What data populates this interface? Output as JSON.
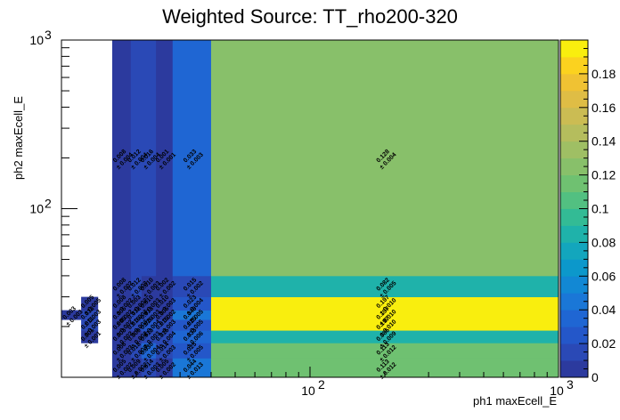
{
  "chart_data": {
    "type": "heatmap",
    "title": "Weighted Source: TT_rho200-320",
    "xlabel": "ph1 maxEcell_E",
    "ylabel": "ph2 maxEcell_E",
    "x_scale": "log",
    "y_scale": "log",
    "xlim": [
      10,
      1000
    ],
    "ylim": [
      10,
      1000
    ],
    "x_tick_labels": [
      {
        "value": 100,
        "base": "10",
        "exp": "2"
      },
      {
        "value": 1000,
        "base": "10",
        "exp": "3"
      }
    ],
    "y_tick_labels": [
      {
        "value": 100,
        "base": "10",
        "exp": "2"
      },
      {
        "value": 1000,
        "base": "10",
        "exp": "3"
      }
    ],
    "zlim": [
      0,
      0.2
    ],
    "colorbar_ticks": [
      "0",
      "0.02",
      "0.04",
      "0.06",
      "0.08",
      "0.1",
      "0.12",
      "0.14",
      "0.16",
      "0.18"
    ],
    "colorbar_values": [
      0,
      0.02,
      0.04,
      0.06,
      0.08,
      0.1,
      0.12,
      0.14,
      0.16,
      0.18
    ],
    "palette": [
      "#2c3a9e",
      "#2a49b6",
      "#2457c9",
      "#1f66d3",
      "#1a77d7",
      "#1288d4",
      "#0c98cb",
      "#13a6bd",
      "#1fb2aa",
      "#33bb95",
      "#52c081",
      "#6fc171",
      "#88c06a",
      "#9fbf64",
      "#b5bd5d",
      "#cbbc53",
      "#dfbd45",
      "#f0c233",
      "#fbd21f",
      "#f9ee0e"
    ],
    "x_edges": [
      10,
      12,
      14,
      16,
      19,
      21,
      24,
      28,
      40,
      1000
    ],
    "y_edges": [
      10,
      13,
      16,
      19,
      22,
      25,
      30,
      40,
      1000
    ],
    "cells": [
      {
        "xi": 0,
        "yi": 4,
        "value": 0.003,
        "label": "0.003",
        "err": "± 0.003"
      },
      {
        "xi": 1,
        "yi": 2,
        "value": 0.001,
        "label": "0.001",
        "err": "± 0.001"
      },
      {
        "xi": 1,
        "yi": 3,
        "value": 0.011,
        "label": "0.011",
        "err": "± 0.003"
      },
      {
        "xi": 1,
        "yi": 4,
        "value": 0.012,
        "label": "0.012",
        "err": "± 0.003"
      },
      {
        "xi": 1,
        "yi": 5,
        "value": 0.005,
        "label": "0.005",
        "err": "± 0.005"
      },
      {
        "xi": 3,
        "yi": 0,
        "value": 0.005,
        "label": "0.005",
        "err": "± 0.002"
      },
      {
        "xi": 3,
        "yi": 1,
        "value": 0.006,
        "label": "0.006",
        "err": "± 0.003"
      },
      {
        "xi": 3,
        "yi": 2,
        "value": 0.003,
        "label": "0.003",
        "err": "± 0.002"
      },
      {
        "xi": 3,
        "yi": 3,
        "value": 0.005,
        "label": "0.005",
        "err": "± 0.002"
      },
      {
        "xi": 3,
        "yi": 4,
        "value": 0.005,
        "label": "0.005",
        "err": "± 0.002"
      },
      {
        "xi": 3,
        "yi": 5,
        "value": 0.008,
        "label": "0.008",
        "err": "± 0.002"
      },
      {
        "xi": 3,
        "yi": 6,
        "value": 0.008,
        "label": "0.008",
        "err": "± 0.002"
      },
      {
        "xi": 3,
        "yi": 7,
        "value": 0.008,
        "label": "0.008",
        "err": "± 0.004"
      },
      {
        "xi": 4,
        "yi": 0,
        "value": 0.009,
        "label": "0.009",
        "err": "± 0.002"
      },
      {
        "xi": 4,
        "yi": 1,
        "value": 0.018,
        "label": "0.018",
        "err": "± 0.003"
      },
      {
        "xi": 4,
        "yi": 2,
        "value": 0.009,
        "label": "0.009",
        "err": "± 0.002"
      },
      {
        "xi": 4,
        "yi": 3,
        "value": 0.016,
        "label": "0.016",
        "err": "± 0.003"
      },
      {
        "xi": 4,
        "yi": 4,
        "value": 0.012,
        "label": "0.012",
        "err": "± 0.003"
      },
      {
        "xi": 4,
        "yi": 5,
        "value": 0.003,
        "label": "0.003",
        "err": "± 0.002"
      },
      {
        "xi": 4,
        "yi": 6,
        "value": 0.012,
        "label": "0.012",
        "err": "± 0.003"
      },
      {
        "xi": 4,
        "yi": 7,
        "value": 0.012,
        "label": "0.012",
        "err": "± 0.004"
      },
      {
        "xi": 5,
        "yi": 0,
        "value": 0.014,
        "label": "0.014",
        "err": "± 0.003"
      },
      {
        "xi": 5,
        "yi": 1,
        "value": 0.03,
        "label": "0.030",
        "err": "± 0.004"
      },
      {
        "xi": 5,
        "yi": 2,
        "value": 0.013,
        "label": "0.013",
        "err": "± 0.003"
      },
      {
        "xi": 5,
        "yi": 3,
        "value": 0.026,
        "label": "0.026",
        "err": "± 0.004"
      },
      {
        "xi": 5,
        "yi": 4,
        "value": 0.013,
        "label": "0.013",
        "err": "± 0.003"
      },
      {
        "xi": 5,
        "yi": 5,
        "value": 0.01,
        "label": "0.010",
        "err": "± 0.003"
      },
      {
        "xi": 5,
        "yi": 6,
        "value": 0.01,
        "label": "0.010",
        "err": "± 0.003"
      },
      {
        "xi": 5,
        "yi": 7,
        "value": 0.016,
        "label": "0.016",
        "err": "± 0.004"
      },
      {
        "xi": 6,
        "yi": 0,
        "value": 0.005,
        "label": "0.005",
        "err": "± 0.002"
      },
      {
        "xi": 6,
        "yi": 1,
        "value": 0.014,
        "label": "0.014",
        "err": "± 0.003"
      },
      {
        "xi": 6,
        "yi": 2,
        "value": 0.015,
        "label": "0.015",
        "err": "± 0.004"
      },
      {
        "xi": 6,
        "yi": 3,
        "value": 0.015,
        "label": "0.015",
        "err": "± 0.003"
      },
      {
        "xi": 6,
        "yi": 4,
        "value": 0.005,
        "label": "0.005",
        "err": "± 0.002"
      },
      {
        "xi": 6,
        "yi": 5,
        "value": 0.01,
        "label": "0.010",
        "err": "± 0.003"
      },
      {
        "xi": 6,
        "yi": 6,
        "value": 0.002,
        "label": "0.002",
        "err": "± 0.002"
      },
      {
        "xi": 6,
        "yi": 7,
        "value": 0.001,
        "label": "0.001",
        "err": "± 0.001"
      },
      {
        "xi": 7,
        "yi": 0,
        "value": 0.044,
        "label": "0.044",
        "err": "± 0.013"
      },
      {
        "xi": 7,
        "yi": 1,
        "value": 0.025,
        "label": "0.025",
        "err": "± 0.005"
      },
      {
        "xi": 7,
        "yi": 2,
        "value": 0.033,
        "label": "0.033",
        "err": "± 0.006"
      },
      {
        "xi": 7,
        "yi": 3,
        "value": 0.025,
        "label": "0.025",
        "err": "± 0.005"
      },
      {
        "xi": 7,
        "yi": 4,
        "value": 0.049,
        "label": "0.049",
        "err": "± 0.005"
      },
      {
        "xi": 7,
        "yi": 5,
        "value": 0.023,
        "label": "0.023",
        "err": "± 0.004"
      },
      {
        "xi": 7,
        "yi": 6,
        "value": 0.015,
        "label": "0.015",
        "err": "± 0.002"
      },
      {
        "xi": 7,
        "yi": 7,
        "value": 0.033,
        "label": "0.033",
        "err": "± 0.003"
      },
      {
        "xi": 8,
        "yi": 0,
        "value": 0.113,
        "label": "0.113",
        "err": "± 0.012"
      },
      {
        "xi": 8,
        "yi": 1,
        "value": 0.113,
        "label": "0.113",
        "err": "± 0.012"
      },
      {
        "xi": 8,
        "yi": 2,
        "value": 0.085,
        "label": "0.085",
        "err": "± 0.009"
      },
      {
        "xi": 8,
        "yi": 3,
        "value": 0.197,
        "label": "0.197",
        "err": "± 0.010"
      },
      {
        "xi": 8,
        "yi": 4,
        "value": 0.197,
        "label": "0.197",
        "err": "± 0.010"
      },
      {
        "xi": 8,
        "yi": 5,
        "value": 0.197,
        "label": "0.197",
        "err": "± 0.010"
      },
      {
        "xi": 8,
        "yi": 6,
        "value": 0.082,
        "label": "0.082",
        "err": "± 0.005"
      },
      {
        "xi": 8,
        "yi": 7,
        "value": 0.128,
        "label": "0.128",
        "err": "± 0.004"
      }
    ]
  }
}
